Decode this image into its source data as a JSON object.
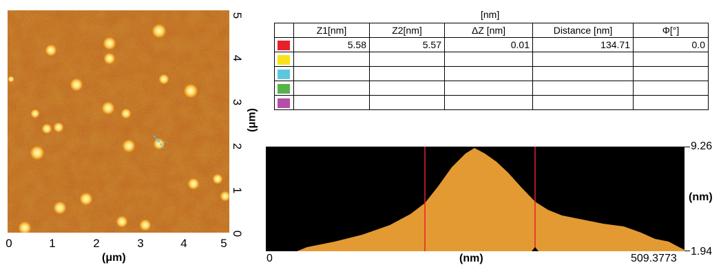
{
  "image": {
    "x_axis": {
      "ticks": [
        "0",
        "1",
        "2",
        "3",
        "4",
        "5"
      ],
      "title": "(μm)"
    },
    "y_axis": {
      "ticks": [
        "0",
        "1",
        "2",
        "3",
        "4",
        "5"
      ],
      "title": "(μm)"
    }
  },
  "table": {
    "unit_header": "[nm]",
    "columns": [
      "Z1[nm]",
      "Z2[nm]",
      "ΔZ [nm]",
      "Distance [nm]",
      "Φ[°]"
    ],
    "rows": [
      {
        "color": "#e8202a",
        "z1": "5.58",
        "z2": "5.57",
        "dz": "0.01",
        "distance": "134.71",
        "phi": "0.0"
      },
      {
        "color": "#f7e31a",
        "z1": "",
        "z2": "",
        "dz": "",
        "distance": "",
        "phi": ""
      },
      {
        "color": "#5ec7e0",
        "z1": "",
        "z2": "",
        "dz": "",
        "distance": "",
        "phi": ""
      },
      {
        "color": "#56b34a",
        "z1": "",
        "z2": "",
        "dz": "",
        "distance": "",
        "phi": ""
      },
      {
        "color": "#b64ea8",
        "z1": "",
        "z2": "",
        "dz": "",
        "distance": "",
        "phi": ""
      }
    ]
  },
  "profile": {
    "y_max": "9.26",
    "y_min": "1.94",
    "y_unit": "(nm)",
    "x_min": "0",
    "x_max": "509.3773",
    "x_unit": "(nm)",
    "fill_color": "#e39a33",
    "background": "#000000",
    "cursor_color": "#e8202a"
  }
}
